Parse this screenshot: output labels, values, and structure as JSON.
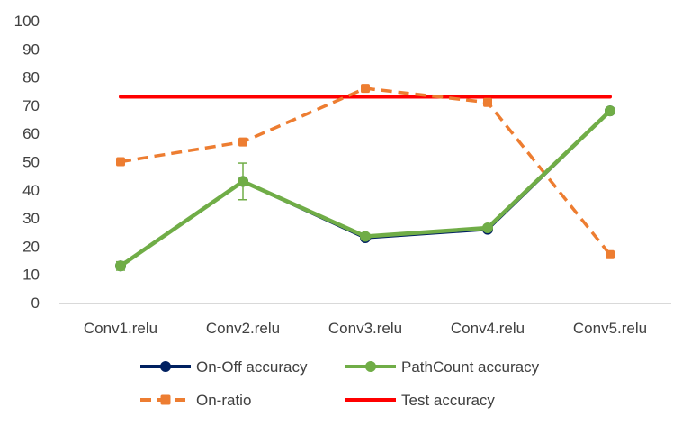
{
  "chart_data": {
    "type": "line",
    "title": "",
    "xlabel": "",
    "ylabel": "",
    "ylim": [
      0,
      100
    ],
    "yticks": [
      0,
      10,
      20,
      30,
      40,
      50,
      60,
      70,
      80,
      90,
      100
    ],
    "categories": [
      "Conv1.relu",
      "Conv2.relu",
      "Conv3.relu",
      "Conv4.relu",
      "Conv5.relu"
    ],
    "grid": false,
    "legend_position": "bottom",
    "series": [
      {
        "name": "On-Off accuracy",
        "values": [
          13,
          43,
          23,
          26,
          68
        ],
        "color": "#002060",
        "dash": "solid",
        "marker": "circle"
      },
      {
        "name": "PathCount accuracy",
        "values": [
          13,
          43,
          23.5,
          26.5,
          68
        ],
        "error": [
          1.5,
          6.5,
          0.5,
          0.5,
          0.5
        ],
        "color": "#70AD47",
        "dash": "solid",
        "marker": "circle"
      },
      {
        "name": "On-ratio",
        "values": [
          50,
          57,
          76,
          71,
          17
        ],
        "color": "#ED7D31",
        "dash": "dashed",
        "marker": "square"
      },
      {
        "name": "Test accuracy",
        "values": [
          73,
          73,
          73,
          73,
          73
        ],
        "color": "#FF0000",
        "dash": "solid",
        "marker": "none"
      }
    ]
  }
}
